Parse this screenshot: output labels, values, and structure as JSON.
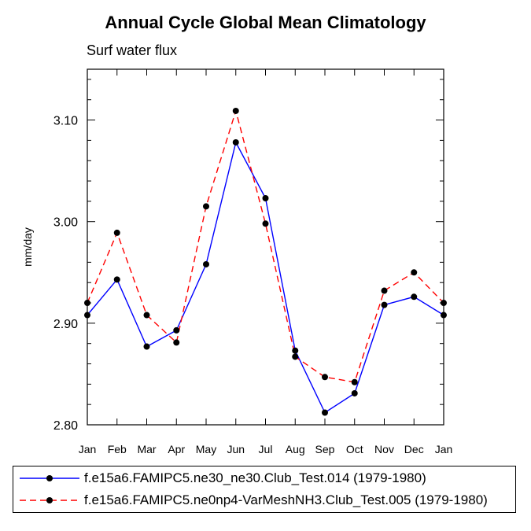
{
  "chart_data": {
    "type": "line",
    "title": "Annual Cycle Global Mean Climatology",
    "subtitle": "Surf water flux",
    "xlabel": "",
    "ylabel": "mm/day",
    "categories": [
      "Jan",
      "Feb",
      "Mar",
      "Apr",
      "May",
      "Jun",
      "Jul",
      "Aug",
      "Sep",
      "Oct",
      "Nov",
      "Dec",
      "Jan"
    ],
    "ylim": [
      2.8,
      3.15
    ],
    "yticks": [
      2.8,
      2.9,
      3.0,
      3.1
    ],
    "ytick_labels": [
      "2.80",
      "2.90",
      "3.00",
      "3.10"
    ],
    "series": [
      {
        "name": "f.e15a6.FAMIPC5.ne30_ne30.Club_Test.014 (1979-1980)",
        "color": "#0000ff",
        "dash": "solid",
        "values": [
          2.908,
          2.943,
          2.877,
          2.893,
          2.958,
          3.078,
          3.023,
          2.873,
          2.812,
          2.831,
          2.918,
          2.926,
          2.908
        ]
      },
      {
        "name": "f.e15a6.FAMIPC5.ne0np4-VarMeshNH3.Club_Test.005 (1979-1980)",
        "color": "#ff0000",
        "dash": "dashed",
        "values": [
          2.92,
          2.989,
          2.908,
          2.881,
          3.015,
          3.109,
          2.998,
          2.867,
          2.847,
          2.842,
          2.932,
          2.95,
          2.92
        ]
      }
    ],
    "legend_position": "bottom",
    "grid": false
  }
}
